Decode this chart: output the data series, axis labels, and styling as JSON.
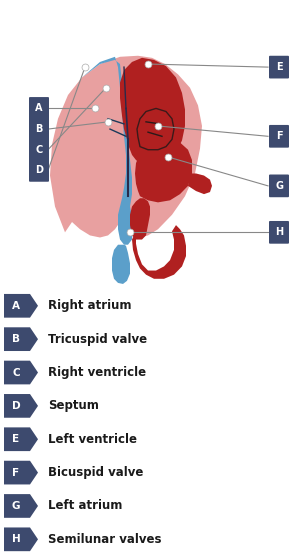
{
  "bg_color": "#ffffff",
  "label_entries": [
    {
      "letter": "A",
      "text": "Right atrium"
    },
    {
      "letter": "B",
      "text": "Tricuspid valve"
    },
    {
      "letter": "C",
      "text": "Right ventricle"
    },
    {
      "letter": "D",
      "text": "Septum"
    },
    {
      "letter": "E",
      "text": "Left ventricle"
    },
    {
      "letter": "F",
      "text": "Bicuspid valve"
    },
    {
      "letter": "G",
      "text": "Left atrium"
    },
    {
      "letter": "H",
      "text": "Semilunar valves"
    }
  ],
  "label_box_color": "#3d4a6e",
  "label_bg_color": "#d8daea",
  "heart_blue": "#5b9fca",
  "heart_blue_light": "#7ab8d8",
  "heart_red": "#b02020",
  "heart_red_light": "#e8a0a0",
  "heart_red_medium": "#cc3030",
  "heart_pink": "#dda0a0",
  "line_color": "#888888",
  "septum_color": "#2a2a4a",
  "dot_fill": "#ffffff",
  "dot_edge": "#aaaaaa"
}
